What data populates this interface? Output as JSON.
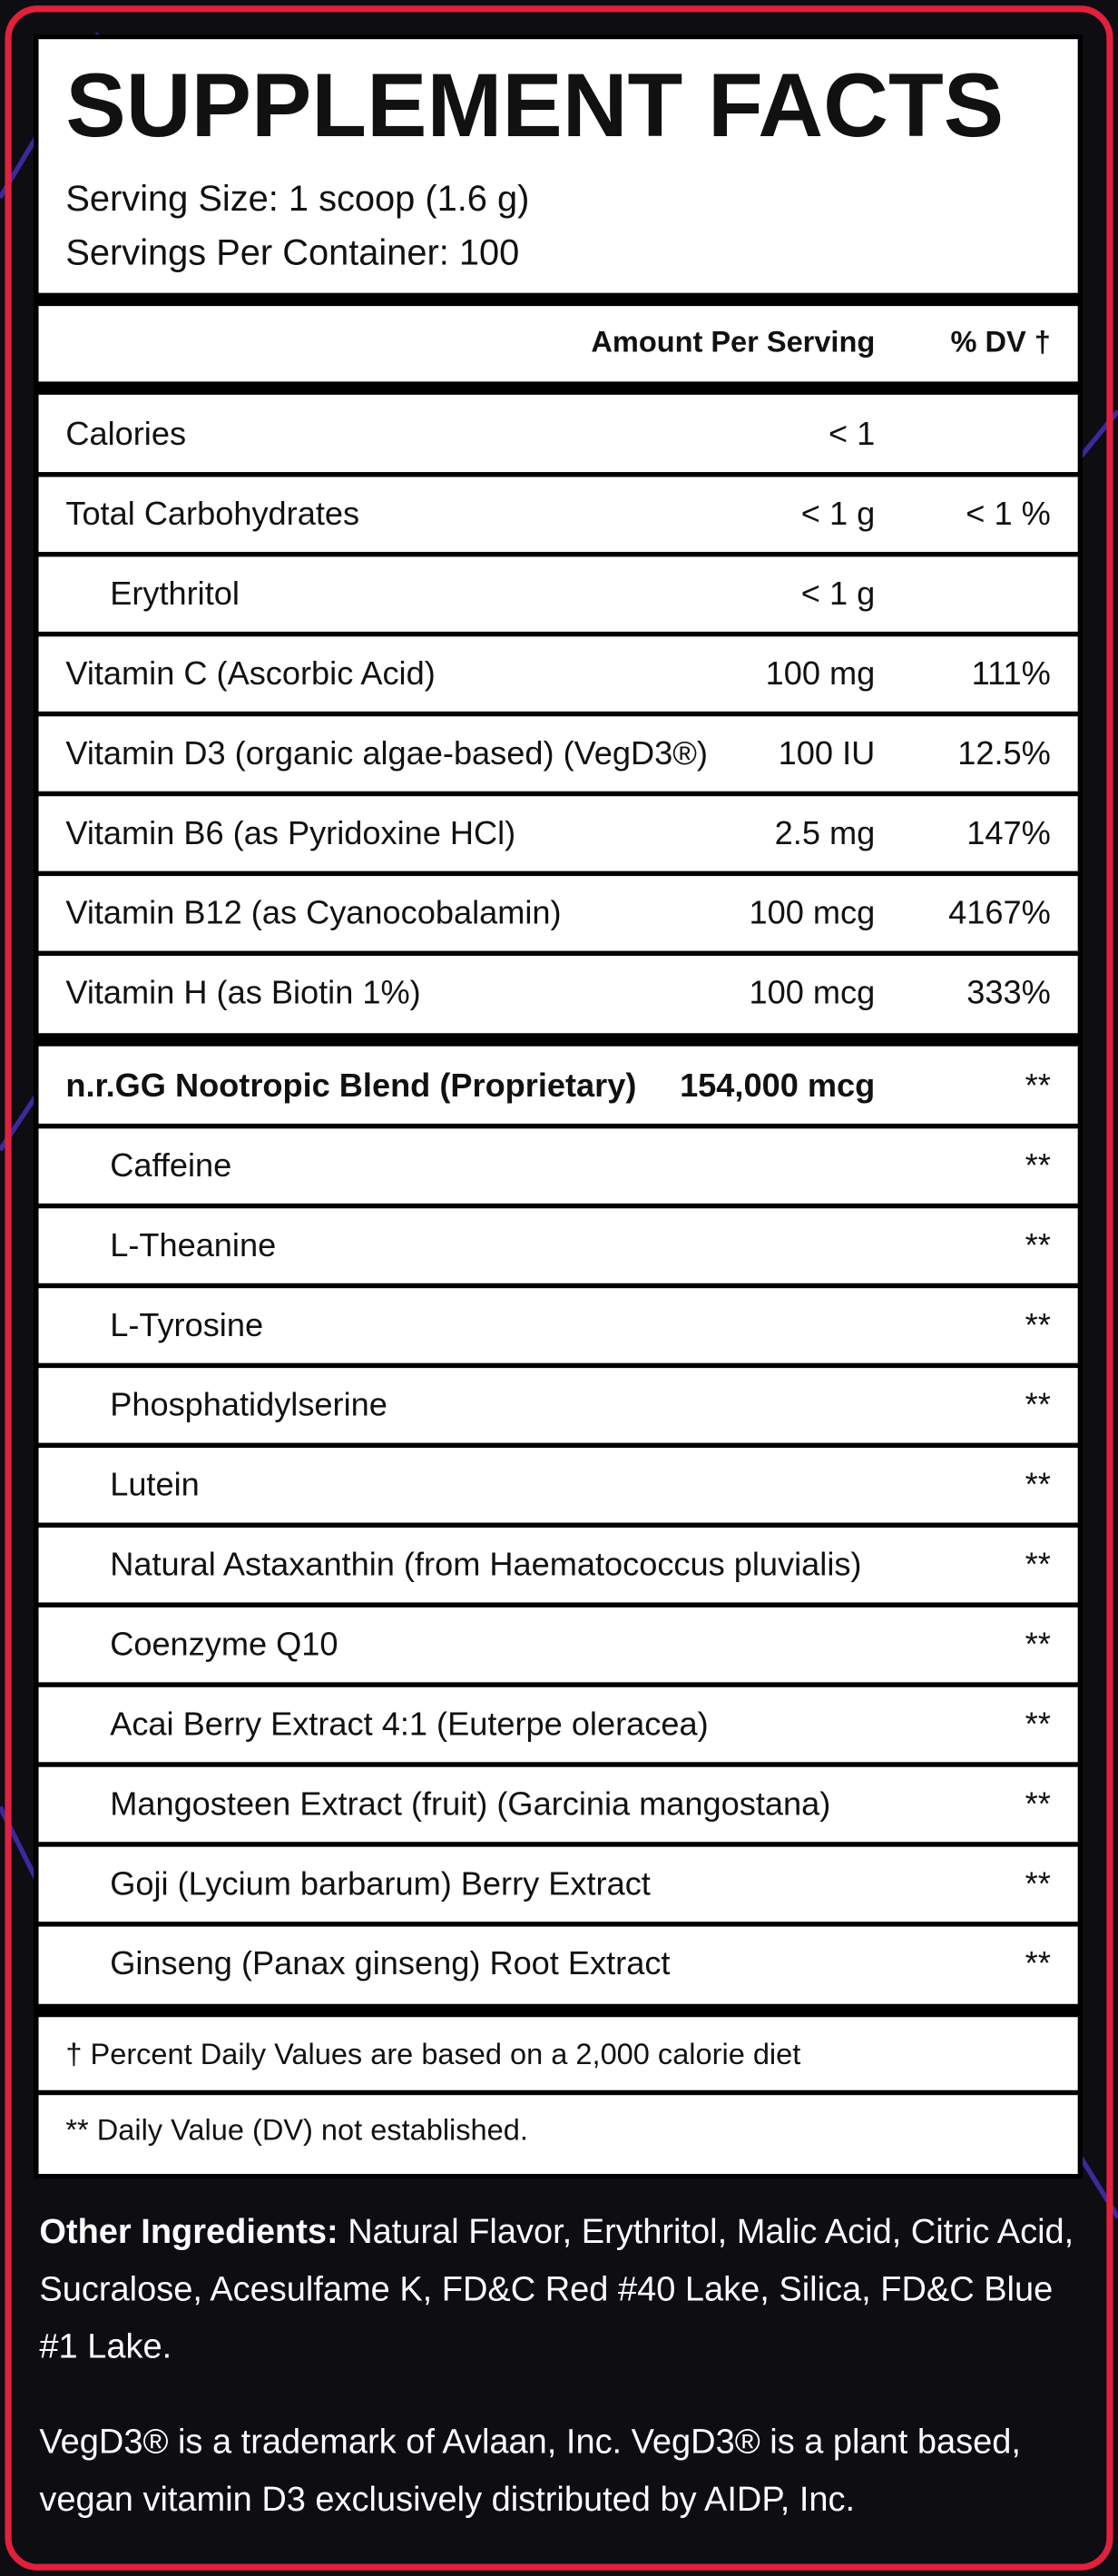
{
  "header": {
    "title": "SUPPLEMENT FACTS",
    "serving_size": "Serving Size: 1 scoop (1.6 g)",
    "servings_per_container": "Servings Per Container: 100"
  },
  "table": {
    "columns": [
      "Amount Per Serving",
      "% DV †"
    ],
    "sections": [
      [
        {
          "name": "Calories",
          "amount": "< 1"
        },
        {
          "name": "Total Carbohydrates",
          "amount": "< 1 g",
          "dv": "< 1 %"
        },
        {
          "name": "Erythritol",
          "amount": "< 1 g",
          "indent": true
        },
        {
          "name": "Vitamin C (Ascorbic Acid)",
          "amount": "100 mg",
          "dv": "111%"
        },
        {
          "name": "Vitamin D3 (organic algae-based) (VegD3®)",
          "amount": "100 IU",
          "dv": "12.5%"
        },
        {
          "name": "Vitamin B6 (as Pyridoxine HCl)",
          "amount": "2.5 mg",
          "dv": "147%"
        },
        {
          "name": "Vitamin B12 (as Cyanocobalamin)",
          "amount": "100 mcg",
          "dv": "4167%"
        },
        {
          "name": "Vitamin H (as Biotin 1%)",
          "amount": "100 mcg",
          "dv": "333%"
        }
      ],
      [
        {
          "name": "n.r.GG Nootropic Blend (Proprietary)",
          "amount": "154,000 mcg",
          "dv": "**",
          "bold": true
        },
        {
          "name": "Caffeine",
          "dv": "**",
          "indent": true
        },
        {
          "name": "L-Theanine",
          "dv": "**",
          "indent": true
        },
        {
          "name": "L-Tyrosine",
          "dv": "**",
          "indent": true
        },
        {
          "name": "Phosphatidylserine",
          "dv": "**",
          "indent": true
        },
        {
          "name": "Lutein",
          "dv": "**",
          "indent": true
        },
        {
          "name": "Natural Astaxanthin (from Haematococcus pluvialis)",
          "dv": "**",
          "indent": true
        },
        {
          "name": "Coenzyme Q10",
          "dv": "**",
          "indent": true
        },
        {
          "name": "Acai Berry Extract 4:1 (Euterpe oleracea)",
          "dv": "**",
          "indent": true
        },
        {
          "name": "Mangosteen Extract (fruit) (Garcinia mangostana)",
          "dv": "**",
          "indent": true
        },
        {
          "name": "Goji (Lycium barbarum) Berry Extract",
          "dv": "**",
          "indent": true
        },
        {
          "name": "Ginseng (Panax ginseng) Root Extract",
          "dv": "**",
          "indent": true
        }
      ]
    ],
    "footnotes": [
      "† Percent Daily Values are based on a 2,000 calorie diet",
      "** Daily Value (DV) not established."
    ]
  },
  "other_ingredients": {
    "label": "Other Ingredients:",
    "lines": [
      "Natural Flavor, Erythritol, Malic Acid, Citric Acid,",
      "Sucralose, Acesulfame K, FD&C Red #40 Lake, Silica, FD&C Blue",
      "#1 Lake."
    ]
  },
  "trademark_note": {
    "lines": [
      "VegD3® is a trademark of Avlaan, Inc. VegD3® is a plant based,",
      "vegan vitamin D3 exclusively distributed by AIDP, Inc."
    ]
  }
}
